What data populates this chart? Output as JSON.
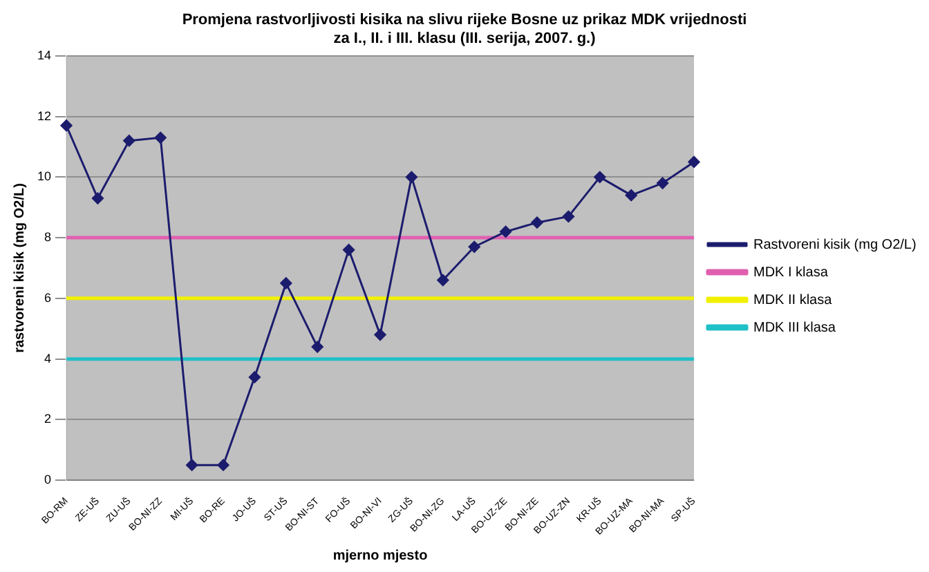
{
  "chart_data": {
    "type": "line",
    "title": "Promjena rastvorljivosti kisika na slivu rijeke Bosne uz prikaz MDK vrijednosti\nza I., II. i III. klasu (III. serija, 2007. g.)",
    "xlabel": "mjerno mjesto",
    "ylabel": "rastvoreni kisik (mg O2/L)",
    "categories": [
      "BO-RM",
      "ZE-UŠ",
      "ZU-UŠ",
      "BO-NI-ZZ",
      "MI-UŠ",
      "BO-RE",
      "JO-UŠ",
      "ST-UŠ",
      "BO-NI-ST",
      "FO-UŠ",
      "BO-NI-VI",
      "ZG-UŠ",
      "BO-NI-ZG",
      "LA-UŠ",
      "BO-UZ-ZE",
      "BO-NI-ZE",
      "BO-UZ-ZN",
      "KR-UŠ",
      "BO-UZ-MA",
      "BO-NI-MA",
      "SP-UŠ"
    ],
    "series": [
      {
        "name": "Rastvoreni kisik (mg O2/L)",
        "color": "#1c1c6e",
        "marker": "diamond",
        "values": [
          11.7,
          9.3,
          11.2,
          11.3,
          0.5,
          0.5,
          3.4,
          6.5,
          4.4,
          7.6,
          4.8,
          10.0,
          6.6,
          7.7,
          8.2,
          8.5,
          8.7,
          10.0,
          9.4,
          9.8,
          10.5
        ]
      },
      {
        "name": "MDK I klasa",
        "color": "#e060b0",
        "values": [
          8,
          8,
          8,
          8,
          8,
          8,
          8,
          8,
          8,
          8,
          8,
          8,
          8,
          8,
          8,
          8,
          8,
          8,
          8,
          8,
          8
        ]
      },
      {
        "name": "MDK II klasa",
        "color": "#f0f000",
        "values": [
          6,
          6,
          6,
          6,
          6,
          6,
          6,
          6,
          6,
          6,
          6,
          6,
          6,
          6,
          6,
          6,
          6,
          6,
          6,
          6,
          6
        ]
      },
      {
        "name": "MDK III klasa",
        "color": "#20c0c8",
        "values": [
          4,
          4,
          4,
          4,
          4,
          4,
          4,
          4,
          4,
          4,
          4,
          4,
          4,
          4,
          4,
          4,
          4,
          4,
          4,
          4,
          4
        ]
      }
    ],
    "ylim": [
      0,
      14
    ],
    "yticks": [
      0,
      2,
      4,
      6,
      8,
      10,
      12,
      14
    ],
    "grid": "y",
    "legend": "right"
  }
}
